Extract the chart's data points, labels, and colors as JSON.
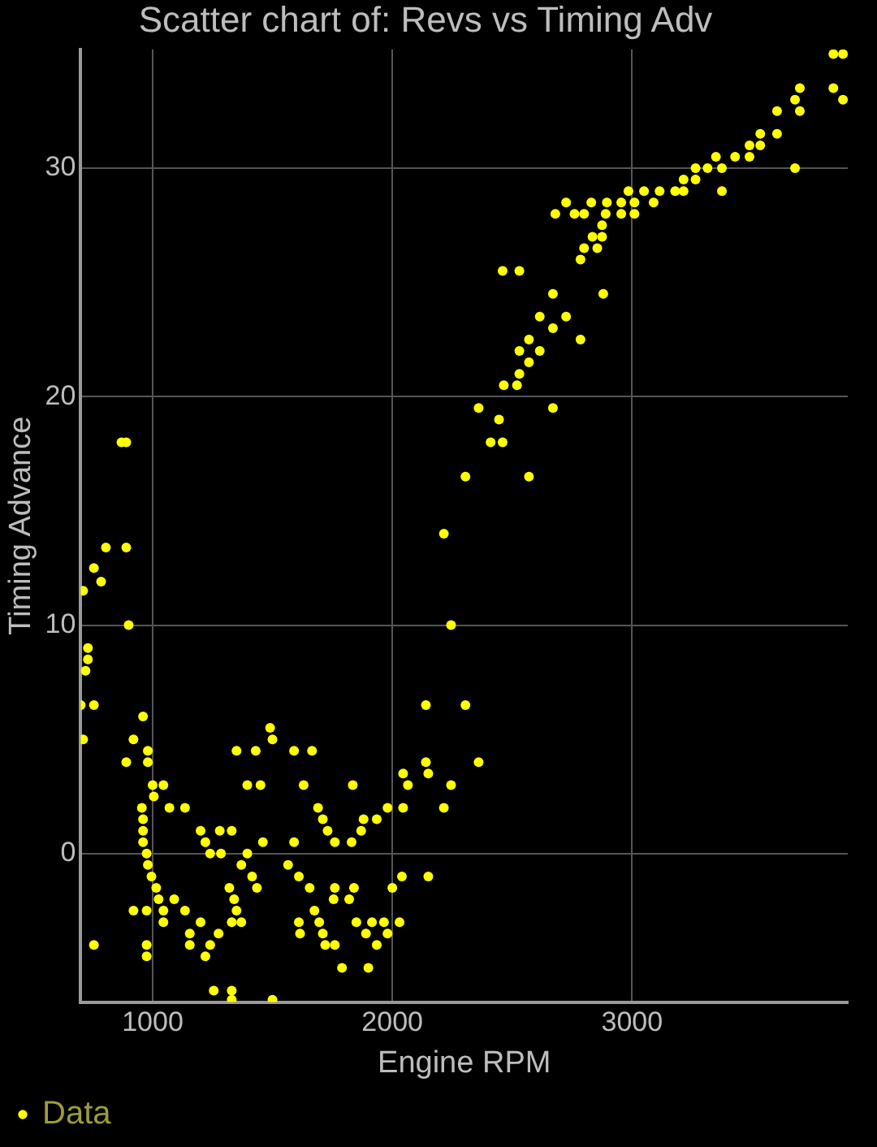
{
  "chart_data": {
    "type": "scatter",
    "title": "Scatter chart of: Revs vs Timing Adv",
    "xlabel": "Engine RPM",
    "ylabel": "Timing Advance",
    "xlim": [
      700,
      3900
    ],
    "ylim": [
      -6.5,
      35.2
    ],
    "xticks": [
      1000,
      2000,
      3000
    ],
    "yticks": [
      0,
      10,
      20,
      30
    ],
    "grid": true,
    "legend": "bottom left",
    "marker": "circle",
    "series": [
      {
        "name": "Data",
        "color": "#ffff00",
        "x": [
          870,
          890,
          805,
          890,
          755,
          785,
          710,
          900,
          730,
          730,
          720,
          700,
          755,
          710,
          960,
          920,
          890,
          980,
          980,
          1000,
          1045,
          1005,
          955,
          1070,
          1135,
          960,
          960,
          960,
          975,
          980,
          995,
          1015,
          1025,
          1090,
          1045,
          1135,
          920,
          975,
          1045,
          1200,
          1330,
          1155,
          1275,
          1240,
          1155,
          975,
          975,
          755,
          1220,
          1255,
          1330,
          1330,
          1500,
          1200,
          1280,
          1330,
          1220,
          1240,
          1285,
          1395,
          1460,
          1590,
          1370,
          1415,
          1320,
          1435,
          1340,
          1350,
          1370,
          1350,
          1430,
          1395,
          1450,
          1490,
          1500,
          1565,
          1610,
          1655,
          1675,
          1695,
          1710,
          1720,
          1610,
          1615,
          1590,
          1665,
          1630,
          1690,
          1710,
          1730,
          1760,
          1830,
          1835,
          1755,
          1820,
          1760,
          1840,
          1850,
          1915,
          1890,
          1980,
          1760,
          1935,
          1790,
          1900,
          1880,
          1935,
          1870,
          1965,
          2030,
          1980,
          2045,
          2045,
          2065,
          2000,
          2040,
          2140,
          2150,
          2150,
          2245,
          2215,
          2140,
          2305,
          2245,
          2215,
          2305,
          2570,
          2410,
          2460,
          2360,
          2670,
          2445,
          2465,
          2520,
          2530,
          2570,
          2530,
          2570,
          2615,
          2615,
          2670,
          2725,
          2785,
          2670,
          2460,
          2530,
          2880,
          2785,
          2800,
          2855,
          2835,
          2875,
          2875,
          2680,
          2760,
          2800,
          2725,
          2830,
          2895,
          2890,
          2955,
          3010,
          2955,
          3010,
          3090,
          2985,
          3050,
          3115,
          3180,
          3215,
          3375,
          3215,
          3265,
          3265,
          3315,
          3375,
          3680,
          3350,
          3430,
          3490,
          3490,
          3535,
          3535,
          3605,
          3605,
          3700,
          3680,
          3700,
          3840,
          3880,
          3840,
          3880,
          2360
        ],
        "values": [
          18.0,
          18.0,
          13.4,
          13.4,
          12.5,
          11.9,
          11.5,
          10.0,
          9.0,
          8.5,
          8.0,
          6.5,
          6.5,
          5.0,
          6.0,
          5.0,
          4.0,
          4.5,
          4.0,
          3.0,
          3.0,
          2.5,
          2.0,
          2.0,
          2.0,
          1.5,
          1.0,
          0.5,
          0,
          -0.5,
          -1.0,
          -1.5,
          -2.0,
          -2.0,
          -2.5,
          -2.5,
          -2.5,
          -2.5,
          -3.0,
          -3.0,
          -3.0,
          -3.5,
          -3.5,
          -4.0,
          -4.0,
          -4.0,
          -4.5,
          -4.0,
          -4.5,
          -6.0,
          -6.0,
          -6.4,
          -6.4,
          1.0,
          1.0,
          1.0,
          0.5,
          0,
          0,
          0,
          0.5,
          0.5,
          -0.5,
          -1.0,
          -1.5,
          -1.5,
          -2.0,
          -2.5,
          -3.0,
          4.5,
          4.5,
          3.0,
          3.0,
          5.5,
          5.0,
          -0.5,
          -1.0,
          -1.5,
          -2.5,
          -3.0,
          -3.5,
          -4.0,
          -3.0,
          -3.5,
          4.5,
          4.5,
          3.0,
          2.0,
          1.5,
          1.0,
          0.5,
          0.5,
          3.0,
          -2.0,
          -2.0,
          -1.5,
          -1.5,
          -3.0,
          -3.0,
          -3.5,
          -3.5,
          -4.0,
          -4.0,
          -5.0,
          -5.0,
          1.5,
          1.5,
          1.0,
          -3.0,
          -3.0,
          2.0,
          2.0,
          3.5,
          3.0,
          -1.5,
          -1.0,
          4.0,
          3.5,
          -1.0,
          3.0,
          2.0,
          6.5,
          6.5,
          10.0,
          14.0,
          16.5,
          16.5,
          18.0,
          18.0,
          19.5,
          19.5,
          19.0,
          20.5,
          20.5,
          21.0,
          21.5,
          22.0,
          22.5,
          22.0,
          23.5,
          23.0,
          23.5,
          22.5,
          24.5,
          25.5,
          25.5,
          24.5,
          26.0,
          26.5,
          26.5,
          27.0,
          27.0,
          27.5,
          28.0,
          28.0,
          28.0,
          28.5,
          28.5,
          28.5,
          28.0,
          28.0,
          28.0,
          28.5,
          28.5,
          28.5,
          29.0,
          29.0,
          29.0,
          29.0,
          29.0,
          29.0,
          29.5,
          29.5,
          30.0,
          30.0,
          30.0,
          30.0,
          30.5,
          30.5,
          30.5,
          31.0,
          31.0,
          31.5,
          31.5,
          32.5,
          32.5,
          33.0,
          33.5,
          33.5,
          33.0,
          35.0,
          35.0,
          4.0
        ]
      }
    ]
  }
}
